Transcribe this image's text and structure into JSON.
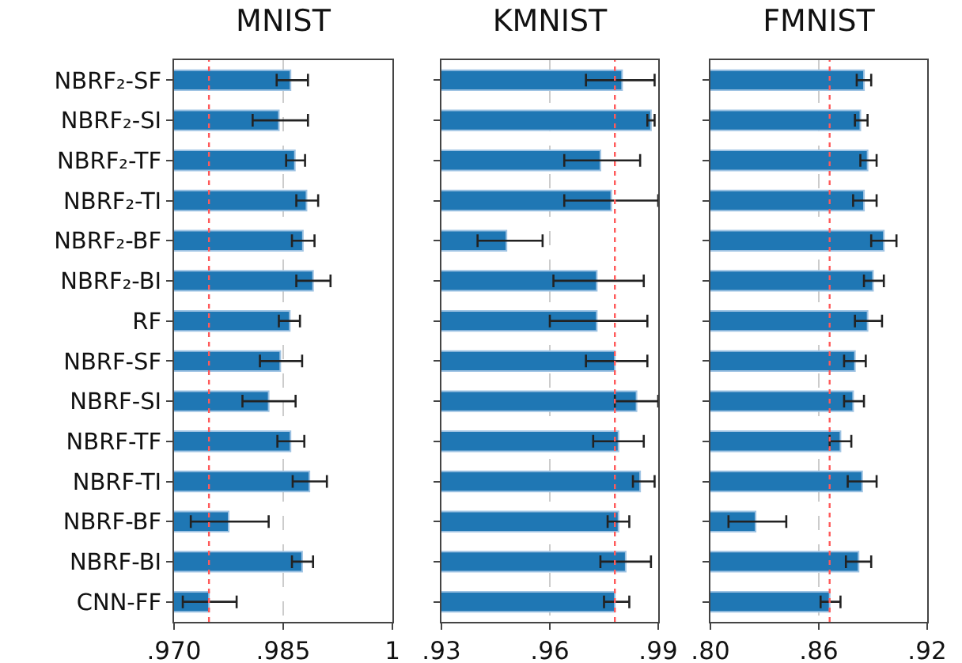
{
  "chart_data": [
    {
      "type": "bar",
      "title": "MNIST",
      "orientation": "horizontal",
      "categories": [
        "NBRF₂-SF",
        "NBRF₂-SI",
        "NBRF₂-TF",
        "NBRF₂-TI",
        "NBRF₂-BF",
        "NBRF₂-BI",
        "RF",
        "NBRF-SF",
        "NBRF-SI",
        "NBRF-TF",
        "NBRF-TI",
        "NBRF-BF",
        "NBRF-BI",
        "CNN-FF"
      ],
      "values": [
        0.986,
        0.9844,
        0.9866,
        0.9882,
        0.9877,
        0.9891,
        0.9859,
        0.9846,
        0.983,
        0.986,
        0.9886,
        0.9775,
        0.9876,
        0.9748
      ],
      "errors": [
        [
          0.9841,
          0.9884
        ],
        [
          0.9808,
          0.9884
        ],
        [
          0.9854,
          0.988
        ],
        [
          0.9868,
          0.9898
        ],
        [
          0.9862,
          0.9893
        ],
        [
          0.9868,
          0.9915
        ],
        [
          0.9844,
          0.9873
        ],
        [
          0.9818,
          0.9876
        ],
        [
          0.9794,
          0.9867
        ],
        [
          0.9842,
          0.9879
        ],
        [
          0.9863,
          0.991
        ],
        [
          0.9723,
          0.983
        ],
        [
          0.9862,
          0.9891
        ],
        [
          0.9712,
          0.9786
        ]
      ],
      "color": "#1f77b4",
      "xlim": [
        0.97,
        1
      ],
      "xticks": [
        {
          "value": 0.97,
          "label": ".970"
        },
        {
          "value": 0.985,
          "label": ".985"
        },
        1
      ],
      "grid": "x",
      "ref_lines": [
        {
          "axis": "x",
          "value": 0.9748,
          "color": "#ff5a5a",
          "line_style": "dotted"
        }
      ]
    },
    {
      "type": "bar",
      "title": "KMNIST",
      "orientation": "horizontal",
      "categories": [
        null,
        null,
        null,
        null,
        null,
        null,
        null,
        null,
        null,
        null,
        null,
        null,
        null,
        null
      ],
      "values": [
        0.98,
        0.988,
        0.974,
        0.977,
        0.948,
        0.973,
        0.973,
        0.978,
        0.984,
        0.979,
        0.985,
        0.979,
        0.981,
        0.978
      ],
      "errors": [
        [
          0.97,
          0.989
        ],
        [
          0.987,
          0.989
        ],
        [
          0.964,
          0.985
        ],
        [
          0.964,
          0.99
        ],
        [
          0.94,
          0.958
        ],
        [
          0.961,
          0.986
        ],
        [
          0.96,
          0.987
        ],
        [
          0.97,
          0.987
        ],
        [
          0.978,
          0.99
        ],
        [
          0.972,
          0.986
        ],
        [
          0.983,
          0.989
        ],
        [
          0.976,
          0.982
        ],
        [
          0.974,
          0.988
        ],
        [
          0.975,
          0.982
        ]
      ],
      "color": "#1f77b4",
      "xlim": [
        0.93,
        0.99
      ],
      "xticks": [
        {
          "value": 0.93,
          "label": ".93"
        },
        {
          "value": 0.96,
          "label": ".96"
        },
        {
          "value": 0.99,
          "label": ".99"
        }
      ],
      "grid": "x",
      "tick_labels": "x",
      "ref_lines": [
        {
          "axis": "x",
          "value": 0.978,
          "color": "#ff5a5a",
          "line_style": "dotted"
        }
      ]
    },
    {
      "type": "bar",
      "title": "FMNIST",
      "orientation": "horizontal",
      "categories": [
        null,
        null,
        null,
        null,
        null,
        null,
        null,
        null,
        null,
        null,
        null,
        null,
        null,
        null
      ],
      "values": [
        0.885,
        0.883,
        0.887,
        0.885,
        0.896,
        0.89,
        0.887,
        0.88,
        0.879,
        0.872,
        0.884,
        0.825,
        0.882,
        0.866
      ],
      "errors": [
        [
          0.881,
          0.889
        ],
        [
          0.88,
          0.887
        ],
        [
          0.883,
          0.892
        ],
        [
          0.879,
          0.892
        ],
        [
          0.889,
          0.903
        ],
        [
          0.885,
          0.896
        ],
        [
          0.88,
          0.895
        ],
        [
          0.874,
          0.886
        ],
        [
          0.874,
          0.885
        ],
        [
          0.866,
          0.878
        ],
        [
          0.876,
          0.892
        ],
        [
          0.81,
          0.842
        ],
        [
          0.875,
          0.889
        ],
        [
          0.861,
          0.872
        ]
      ],
      "color": "#1f77b4",
      "xlim": [
        0.8,
        0.92
      ],
      "xticks": [
        {
          "value": 0.8,
          "label": ".80"
        },
        {
          "value": 0.86,
          "label": ".86"
        },
        {
          "value": 0.92,
          "label": ".92"
        }
      ],
      "grid": "x",
      "tick_labels": "x",
      "ref_lines": [
        {
          "axis": "x",
          "value": 0.866,
          "color": "#ff5a5a",
          "line_style": "dotted"
        }
      ]
    }
  ]
}
